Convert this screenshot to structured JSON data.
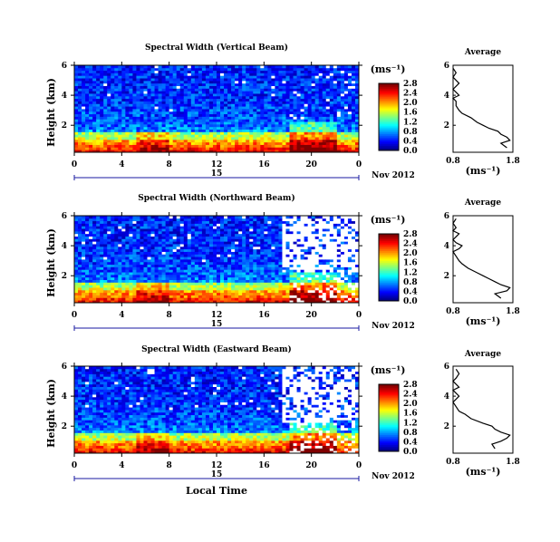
{
  "chart_data": [
    {
      "type": "heatmap",
      "title": "Spectral Width (Vertical Beam)",
      "ylabel": "Height (km)",
      "x_ticks": [
        "0",
        "4",
        "8",
        "12",
        "16",
        "20",
        "0"
      ],
      "y_ticks": [
        "6",
        "4",
        "2"
      ],
      "date_tick": "15",
      "date_label": "Nov 2012",
      "colorbar_unit": "(ms⁻¹)",
      "colorbar_ticks": [
        "0.0",
        "0.4",
        "0.8",
        "1.2",
        "1.6",
        "2.0",
        "2.4",
        "2.8"
      ],
      "avg_title": "Average",
      "avg_xticks": [
        "0.8",
        "1.8"
      ],
      "avg_yticks": [
        "6",
        "4",
        "2"
      ],
      "avg_xlabel": "(ms⁻¹)",
      "xlim": [
        0,
        24
      ],
      "ylim": [
        0.2,
        6
      ],
      "avg_profile": {
        "height": [
          0.5,
          0.8,
          1.0,
          1.2,
          1.4,
          1.6,
          1.8,
          2.0,
          2.2,
          2.5,
          2.8,
          3.0,
          3.3,
          3.6,
          3.8,
          4.0,
          4.2,
          4.4,
          4.6,
          4.8,
          5.0,
          5.2,
          5.5,
          5.8
        ],
        "value": [
          1.7,
          1.6,
          1.75,
          1.7,
          1.6,
          1.55,
          1.4,
          1.3,
          1.2,
          1.1,
          0.95,
          0.9,
          0.85,
          0.85,
          0.8,
          0.9,
          0.85,
          0.8,
          0.85,
          0.9,
          0.85,
          0.8,
          0.85,
          0.8
        ]
      }
    },
    {
      "type": "heatmap",
      "title": "Spectral Width (Northward Beam)",
      "ylabel": "Height (km)",
      "x_ticks": [
        "0",
        "4",
        "8",
        "12",
        "16",
        "20",
        "0"
      ],
      "y_ticks": [
        "6",
        "4",
        "2"
      ],
      "date_tick": "15",
      "date_label": "Nov 2012",
      "colorbar_unit": "(ms⁻¹)",
      "colorbar_ticks": [
        "0.0",
        "0.4",
        "0.8",
        "1.2",
        "1.6",
        "2.0",
        "2.4",
        "2.8"
      ],
      "avg_title": "Average",
      "avg_xticks": [
        "0.8",
        "1.8"
      ],
      "avg_yticks": [
        "6",
        "4",
        "2"
      ],
      "avg_xlabel": "(ms⁻¹)",
      "xlim": [
        0,
        24
      ],
      "ylim": [
        0.2,
        6
      ],
      "avg_profile": {
        "height": [
          0.5,
          0.8,
          1.0,
          1.2,
          1.4,
          1.6,
          1.8,
          2.0,
          2.2,
          2.5,
          2.8,
          3.0,
          3.3,
          3.6,
          3.8,
          4.0,
          4.2,
          4.4,
          4.6,
          4.8,
          5.0,
          5.2,
          5.5,
          5.8
        ],
        "value": [
          1.6,
          1.5,
          1.7,
          1.75,
          1.6,
          1.5,
          1.4,
          1.3,
          1.2,
          1.05,
          0.95,
          0.9,
          0.85,
          0.8,
          0.9,
          0.95,
          0.85,
          0.8,
          0.85,
          0.9,
          0.8,
          0.85,
          0.8,
          0.85
        ]
      }
    },
    {
      "type": "heatmap",
      "title": "Spectral Width (Eastward Beam)",
      "ylabel": "Height (km)",
      "x_ticks": [
        "0",
        "4",
        "8",
        "12",
        "16",
        "20",
        "0"
      ],
      "y_ticks": [
        "6",
        "4",
        "2"
      ],
      "date_tick": "15",
      "date_label": "Nov 2012",
      "xlabel": "Local Time",
      "colorbar_unit": "(ms⁻¹)",
      "colorbar_ticks": [
        "0.0",
        "0.4",
        "0.8",
        "1.2",
        "1.6",
        "2.0",
        "2.4",
        "2.8"
      ],
      "avg_title": "Average",
      "avg_xticks": [
        "0.8",
        "1.8"
      ],
      "avg_yticks": [
        "6",
        "4",
        "2"
      ],
      "avg_xlabel": "(ms⁻¹)",
      "xlim": [
        0,
        24
      ],
      "ylim": [
        0.2,
        6
      ],
      "avg_profile": {
        "height": [
          0.5,
          0.8,
          1.0,
          1.2,
          1.4,
          1.6,
          1.8,
          2.0,
          2.2,
          2.5,
          2.8,
          3.0,
          3.3,
          3.6,
          3.8,
          4.0,
          4.2,
          4.4,
          4.6,
          4.8,
          5.0,
          5.2,
          5.5,
          5.8
        ],
        "value": [
          1.5,
          1.45,
          1.6,
          1.7,
          1.75,
          1.6,
          1.5,
          1.45,
          1.3,
          1.1,
          1.0,
          0.9,
          0.85,
          0.8,
          0.85,
          0.9,
          0.85,
          0.8,
          0.9,
          0.85,
          0.8,
          0.85,
          0.9,
          0.85
        ]
      }
    }
  ]
}
